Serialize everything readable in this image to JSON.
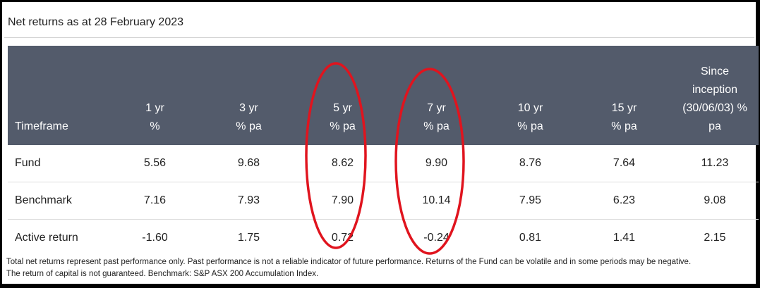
{
  "title": "Net returns as at 28 February 2023",
  "table": {
    "headers": [
      {
        "lines": [
          "Timeframe"
        ]
      },
      {
        "lines": [
          "1 yr",
          "%"
        ]
      },
      {
        "lines": [
          "3 yr",
          "% pa"
        ]
      },
      {
        "lines": [
          "5 yr",
          "% pa"
        ]
      },
      {
        "lines": [
          "7 yr",
          "% pa"
        ]
      },
      {
        "lines": [
          "10 yr",
          "% pa"
        ]
      },
      {
        "lines": [
          "15 yr",
          "% pa"
        ]
      },
      {
        "lines": [
          "Since",
          "inception",
          "(30/06/03) %",
          "pa"
        ]
      }
    ],
    "rows": [
      {
        "label": "Fund",
        "values": [
          "5.56",
          "9.68",
          "8.62",
          "9.90",
          "8.76",
          "7.64",
          "11.23"
        ]
      },
      {
        "label": "Benchmark",
        "values": [
          "7.16",
          "7.93",
          "7.90",
          "10.14",
          "7.95",
          "6.23",
          "9.08"
        ]
      },
      {
        "label": "Active return",
        "values": [
          "-1.60",
          "1.75",
          "0.72",
          "-0.24",
          "0.81",
          "1.41",
          "2.15"
        ]
      }
    ]
  },
  "footnote": {
    "line1": "Total net returns represent past performance only. Past performance is not a reliable indicator of future performance. Returns of the Fund can be volatile and in some periods may be negative.",
    "line2": "The return of capital is not guaranteed. Benchmark: S&P ASX 200 Accumulation Index."
  },
  "colors": {
    "header_bg": "#535b6b",
    "header_text": "#ffffff",
    "highlight_circle": "#e0141e"
  }
}
